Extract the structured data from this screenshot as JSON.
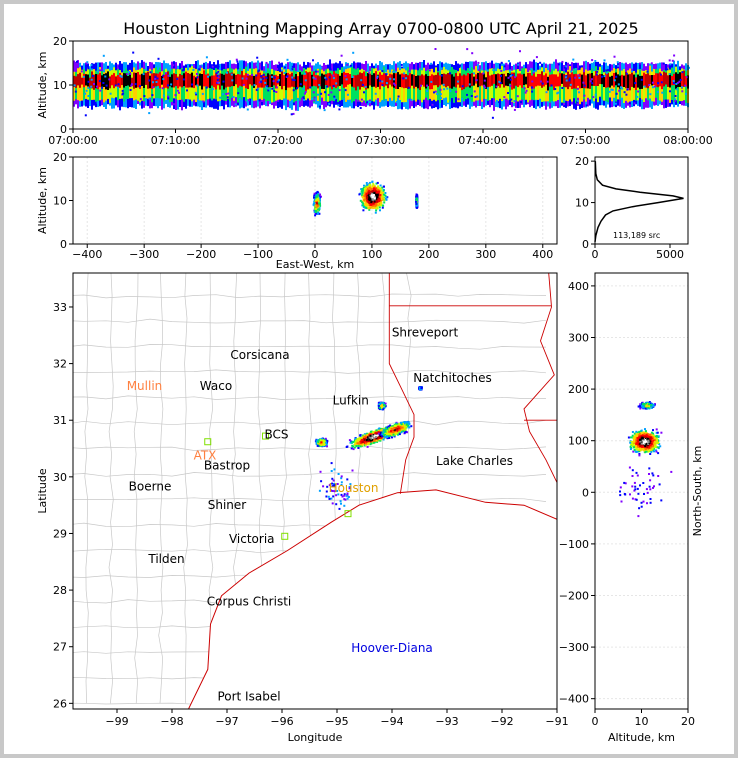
{
  "title": "Houston Lightning Mapping Array 0700-0800 UTC April 21, 2025",
  "colors": {
    "state_border": "#cc0000",
    "county_border": "#c8c8c8",
    "coast": "#cc0000",
    "density": [
      "#8000ff",
      "#0000ff",
      "#00a0ff",
      "#00e060",
      "#c8ff00",
      "#ffd000",
      "#ff7000",
      "#ff0000",
      "#c00000",
      "#000000",
      "#909090",
      "#ffffff"
    ]
  },
  "chart_data": [
    {
      "type": "heatmap",
      "panel": "altitude-time",
      "ylabel": "Altitude, km",
      "ylim": [
        0,
        20
      ],
      "yticks": [
        "0",
        "10",
        "20"
      ],
      "xticks": [
        "07:00:00",
        "07:10:00",
        "07:20:00",
        "07:30:00",
        "07:40:00",
        "07:50:00",
        "08:00:00"
      ],
      "band": {
        "center_km": 11,
        "core_low_km": 9.5,
        "core_high_km": 12.5,
        "outer_low_km": 5,
        "outer_high_km": 15
      }
    },
    {
      "type": "heatmap",
      "panel": "altitude-east-west",
      "xlabel": "East-West, km",
      "ylabel": "Altitude, km",
      "xlim": [
        -425,
        425
      ],
      "ylim": [
        0,
        20
      ],
      "xticks": [
        "−400",
        "−300",
        "−200",
        "−100",
        "0",
        "100",
        "200",
        "300",
        "400"
      ],
      "yticks": [
        "0",
        "10",
        "20"
      ],
      "cells": [
        {
          "x_km": 100,
          "alt_km": 11,
          "width_km": 55,
          "height_km": 8,
          "intensity": 1.0
        },
        {
          "x_km": 2,
          "alt_km": 9.5,
          "width_km": 14,
          "height_km": 6,
          "intensity": 0.6
        },
        {
          "x_km": 177,
          "alt_km": 10,
          "width_km": 3,
          "height_km": 4,
          "intensity": 0.3
        }
      ]
    },
    {
      "type": "line",
      "panel": "altitude-histogram",
      "xlim": [
        0,
        6200
      ],
      "ylim": [
        0,
        21
      ],
      "xticks": [
        "0",
        "5000"
      ],
      "yticks": [
        "0",
        "10",
        "20"
      ],
      "annotation": "113,189 src",
      "points": [
        [
          0,
          0.5
        ],
        [
          50,
          2
        ],
        [
          200,
          4
        ],
        [
          400,
          5.5
        ],
        [
          700,
          7
        ],
        [
          1200,
          8
        ],
        [
          2500,
          9
        ],
        [
          4200,
          10
        ],
        [
          5900,
          11
        ],
        [
          5200,
          11.6
        ],
        [
          3000,
          12.5
        ],
        [
          1400,
          13.3
        ],
        [
          500,
          14.2
        ],
        [
          150,
          15.5
        ],
        [
          50,
          17
        ],
        [
          20,
          20
        ]
      ]
    },
    {
      "type": "heatmap",
      "panel": "plan-view",
      "xlabel": "Longitude",
      "ylabel": "Latitude",
      "xlim": [
        -99.8,
        -91
      ],
      "ylim": [
        25.9,
        33.6
      ],
      "xticks": [
        "−99",
        "−98",
        "−97",
        "−96",
        "−95",
        "−94",
        "−93",
        "−92",
        "−91"
      ],
      "yticks": [
        "26",
        "27",
        "28",
        "29",
        "30",
        "31",
        "32",
        "33"
      ],
      "cities": [
        {
          "name": "Shreveport",
          "lon": -93.4,
          "lat": 32.55,
          "color": "#000000"
        },
        {
          "name": "Corsicana",
          "lon": -96.4,
          "lat": 32.15,
          "color": "#000000"
        },
        {
          "name": "Natchitoches",
          "lon": -92.9,
          "lat": 31.75,
          "color": "#000000"
        },
        {
          "name": "Mullin",
          "lon": -98.5,
          "lat": 31.6,
          "color": "#ff8040"
        },
        {
          "name": "Waco",
          "lon": -97.2,
          "lat": 31.6,
          "color": "#000000"
        },
        {
          "name": "Lufkin",
          "lon": -94.75,
          "lat": 31.35,
          "color": "#000000"
        },
        {
          "name": "BCS",
          "lon": -96.1,
          "lat": 30.75,
          "color": "#000000"
        },
        {
          "name": "ATX",
          "lon": -97.4,
          "lat": 30.38,
          "color": "#ff8040"
        },
        {
          "name": "Bastrop",
          "lon": -97.0,
          "lat": 30.2,
          "color": "#000000"
        },
        {
          "name": "Lake Charles",
          "lon": -92.5,
          "lat": 30.28,
          "color": "#000000"
        },
        {
          "name": "Boerne",
          "lon": -98.4,
          "lat": 29.83,
          "color": "#000000"
        },
        {
          "name": "Houston",
          "lon": -94.7,
          "lat": 29.8,
          "color": "#e0a000"
        },
        {
          "name": "Shiner",
          "lon": -97.0,
          "lat": 29.5,
          "color": "#000000"
        },
        {
          "name": "Victoria",
          "lon": -96.55,
          "lat": 28.9,
          "color": "#000000"
        },
        {
          "name": "Tilden",
          "lon": -98.1,
          "lat": 28.55,
          "color": "#000000"
        },
        {
          "name": "Corpus Christi",
          "lon": -96.6,
          "lat": 27.8,
          "color": "#000000"
        },
        {
          "name": "Hoover-Diana",
          "lon": -94.0,
          "lat": 26.98,
          "color": "#0000e0"
        },
        {
          "name": "Port Isabel",
          "lon": -96.6,
          "lat": 26.12,
          "color": "#000000"
        }
      ],
      "cells": [
        {
          "lon": -94.35,
          "lat": 30.72,
          "w_deg": 0.55,
          "h_deg": 0.13,
          "intensity": 1.0,
          "rot": -20
        },
        {
          "lon": -93.95,
          "lat": 30.85,
          "w_deg": 0.35,
          "h_deg": 0.12,
          "intensity": 0.7,
          "rot": -20
        },
        {
          "lon": -95.3,
          "lat": 30.62,
          "w_deg": 0.12,
          "h_deg": 0.08,
          "intensity": 0.6,
          "rot": 0
        },
        {
          "lon": -94.2,
          "lat": 31.27,
          "w_deg": 0.08,
          "h_deg": 0.07,
          "intensity": 0.5,
          "rot": 0
        },
        {
          "lon": -93.5,
          "lat": 31.58,
          "w_deg": 0.03,
          "h_deg": 0.03,
          "intensity": 0.3,
          "rot": 0
        }
      ]
    },
    {
      "type": "heatmap",
      "panel": "north-south-altitude",
      "xlabel": "Altitude, km",
      "ylabel": "North-South, km",
      "xlim": [
        0,
        20
      ],
      "ylim": [
        -420,
        425
      ],
      "xticks": [
        "0",
        "10",
        "20"
      ],
      "yticks": [
        "−400",
        "−300",
        "−200",
        "−100",
        "0",
        "100",
        "200",
        "300",
        "400"
      ],
      "cells": [
        {
          "alt_km": 10.5,
          "ns_km": 100,
          "width_km": 8,
          "height_km": 55,
          "intensity": 1.0
        },
        {
          "alt_km": 11,
          "ns_km": 170,
          "width_km": 4,
          "height_km": 15,
          "intensity": 0.4
        }
      ]
    }
  ]
}
